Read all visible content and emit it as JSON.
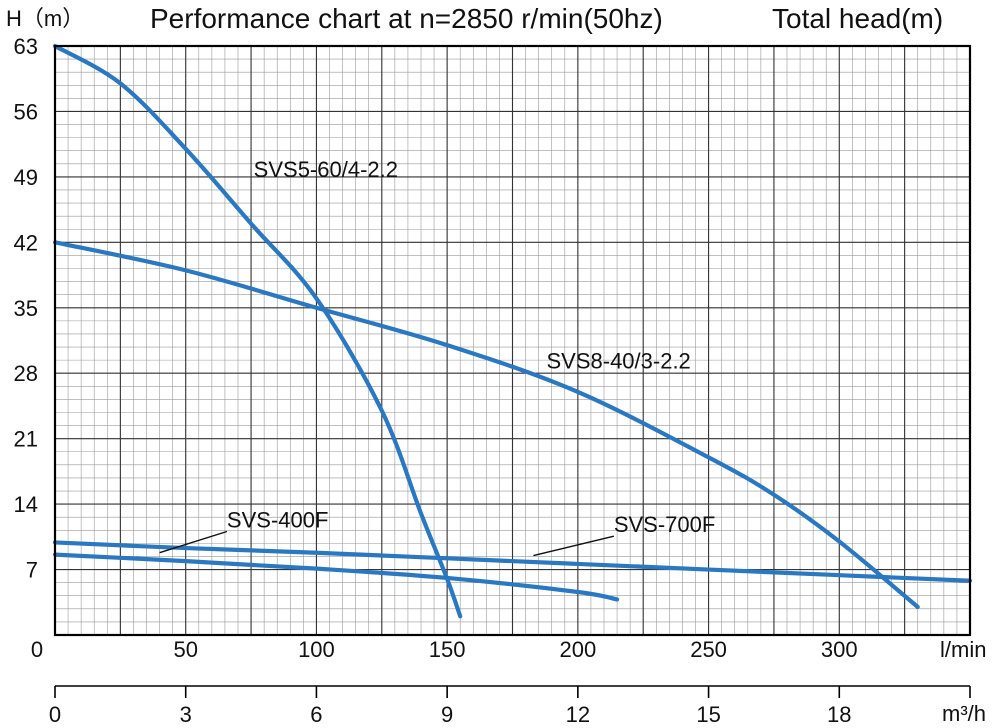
{
  "chart_data": {
    "type": "line",
    "title": "Performance chart at n=2850 r/min(50hz)",
    "ylabel": "H（m）",
    "ylabel_right": "Total head(m)",
    "xlabel": "l/min",
    "x2label": "m³/h",
    "grid": true,
    "xlim": [
      0,
      350
    ],
    "ylim": [
      0,
      63
    ],
    "x2lim": [
      0,
      21
    ],
    "x_ticks": [
      0,
      50,
      100,
      150,
      200,
      250,
      300
    ],
    "x2_ticks": [
      0,
      3,
      6,
      9,
      12,
      15,
      18
    ],
    "y_ticks": [
      7,
      14,
      21,
      28,
      35,
      42,
      49,
      56,
      63
    ],
    "colors": {
      "curve": "#2b78c2",
      "grid_major": "#333333",
      "grid_minor": "#9a9a9a",
      "axis": "#000000"
    },
    "series": [
      {
        "name": "SVS5-60/4-2.2",
        "x": [
          0,
          25,
          50,
          75,
          100,
          125,
          140,
          150,
          155
        ],
        "y": [
          63,
          59,
          52,
          44,
          36,
          24,
          13,
          6,
          2
        ]
      },
      {
        "name": "SVS8-40/3-2.2",
        "x": [
          0,
          50,
          100,
          150,
          200,
          250,
          275,
          300,
          330
        ],
        "y": [
          42,
          39,
          35,
          31,
          26,
          19,
          15,
          10,
          3
        ]
      },
      {
        "name": "SVS-400F",
        "x": [
          0,
          50,
          100,
          150,
          200,
          215
        ],
        "y": [
          8.6,
          7.9,
          7.1,
          6.1,
          4.6,
          3.8
        ]
      },
      {
        "name": "SVS-700F",
        "x": [
          0,
          50,
          100,
          150,
          200,
          250,
          300,
          350
        ],
        "y": [
          9.9,
          9.3,
          8.8,
          8.2,
          7.6,
          7.0,
          6.4,
          5.8
        ]
      }
    ],
    "annotations": [
      {
        "text": "SVS-400F",
        "x": 65,
        "y": 11.5,
        "arrow_x": 40,
        "arrow_y": 8.8
      },
      {
        "text": "SVS-700F",
        "x": 213,
        "y": 11.0,
        "arrow_x": 183,
        "arrow_y": 8.5
      }
    ],
    "curve_labels": [
      {
        "text": "SVS5-60/4-2.2",
        "x": 76,
        "y": 49
      },
      {
        "text": "SVS8-40/3-2.2",
        "x": 188,
        "y": 28.5
      }
    ]
  }
}
